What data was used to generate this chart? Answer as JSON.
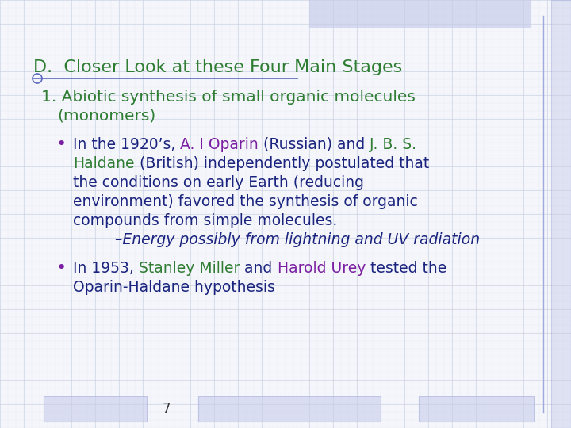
{
  "background_color": "#f4f6fb",
  "grid_color": "#c8d0e0",
  "title_text": "D.  Closer Look at these Four Main Stages",
  "title_color": "#2e7d32",
  "heading1_line1": "1. Abiotic synthesis of small organic molecules",
  "heading1_line2": "    (monomers)",
  "heading1_color": "#2e7d32",
  "text_color": "#1a237e",
  "bullet_color": "#7b1fa2",
  "oparin_color": "#7b1fa2",
  "jbs_color": "#2e7d32",
  "haldane_color": "#2e7d32",
  "stanley_color": "#2e7d32",
  "harold_color": "#7b1fa2",
  "subbullet_color": "#1a237e",
  "page_number": "7",
  "footer_box_color": "#c5cae9",
  "top_bar_color": "#c5cae9",
  "underline_color": "#5c6bc0"
}
